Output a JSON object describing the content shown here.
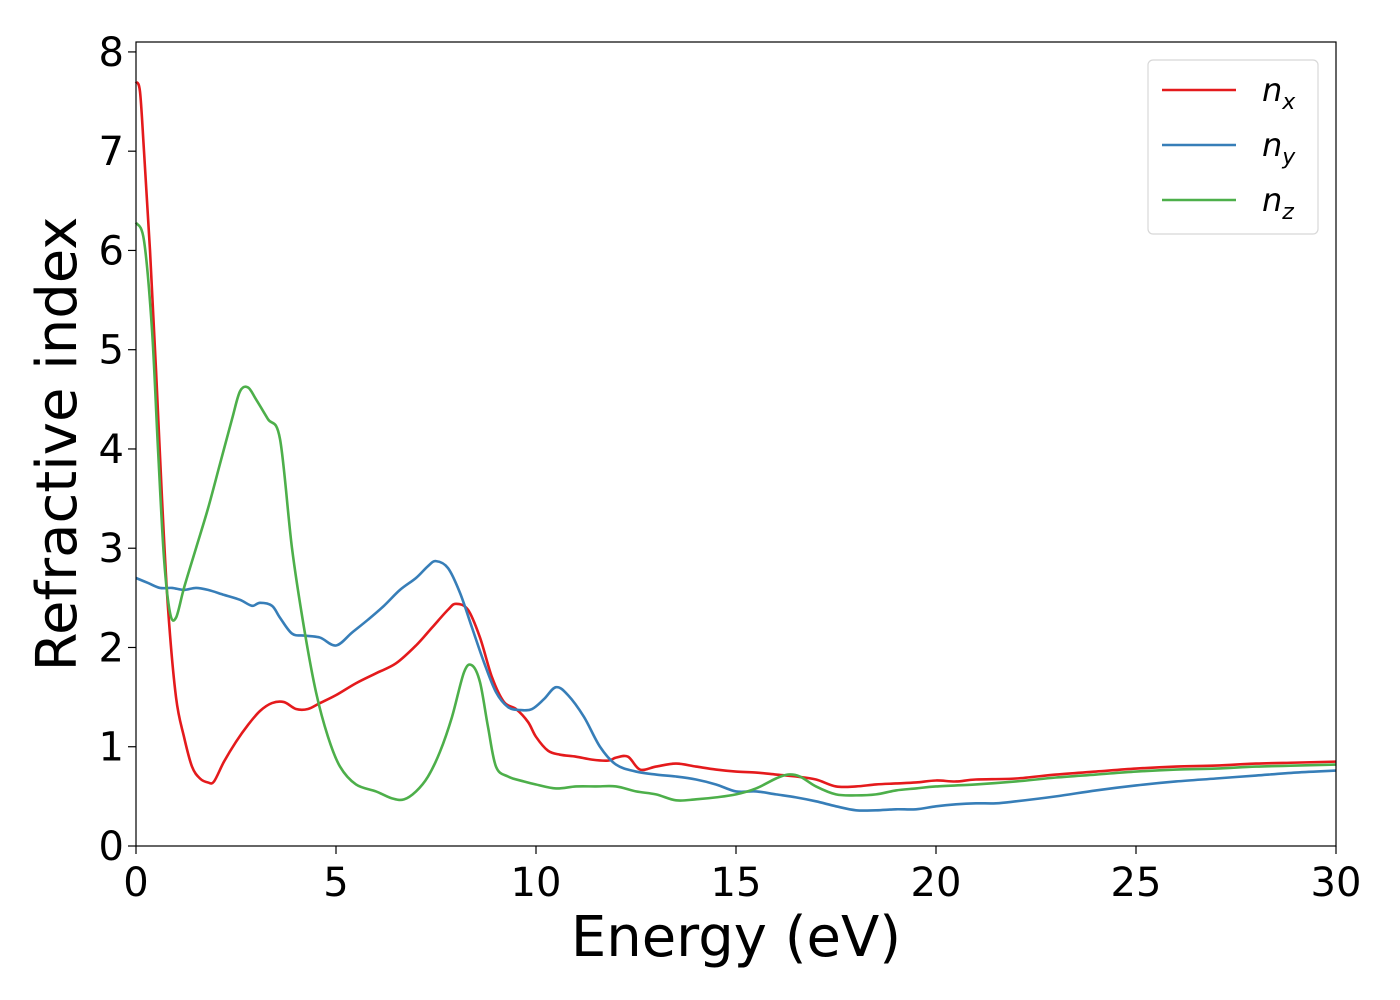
{
  "chart_data": {
    "type": "line",
    "title": "",
    "xlabel": "Energy (eV)",
    "ylabel": "Refractive index",
    "xlim": [
      0,
      30
    ],
    "ylim": [
      0,
      8.1
    ],
    "xticks": [
      "0",
      "5",
      "10",
      "15",
      "20",
      "25",
      "30"
    ],
    "yticks": [
      "0",
      "1",
      "2",
      "3",
      "4",
      "5",
      "6",
      "7",
      "8"
    ],
    "grid": false,
    "legend": {
      "position": "top-right"
    },
    "series": [
      {
        "name_base": "n",
        "name_sub": "x",
        "color": "#e41a1c",
        "x": [
          0,
          0.1,
          0.2,
          0.35,
          0.5,
          0.65,
          0.8,
          1.0,
          1.2,
          1.4,
          1.6,
          1.8,
          1.95,
          2.2,
          2.5,
          2.8,
          3.1,
          3.4,
          3.7,
          4.0,
          4.3,
          4.6,
          5.0,
          5.5,
          6.0,
          6.5,
          7.0,
          7.4,
          7.8,
          8.0,
          8.3,
          8.6,
          8.9,
          9.2,
          9.5,
          9.8,
          10.0,
          10.3,
          10.6,
          11.0,
          11.4,
          11.8,
          12.0,
          12.3,
          12.6,
          13.0,
          13.5,
          14.0,
          14.5,
          15.0,
          15.5,
          16.0,
          16.5,
          17.0,
          17.5,
          18.0,
          18.5,
          19.0,
          19.5,
          20.0,
          20.5,
          21.0,
          22.0,
          23.0,
          24.0,
          25.0,
          26.0,
          27.0,
          28.0,
          29.0,
          30.0
        ],
        "y": [
          7.7,
          7.6,
          7.0,
          6.0,
          4.8,
          3.5,
          2.4,
          1.5,
          1.1,
          0.8,
          0.68,
          0.64,
          0.65,
          0.85,
          1.05,
          1.22,
          1.36,
          1.44,
          1.45,
          1.38,
          1.38,
          1.44,
          1.52,
          1.64,
          1.74,
          1.84,
          2.02,
          2.2,
          2.38,
          2.44,
          2.38,
          2.1,
          1.7,
          1.45,
          1.38,
          1.25,
          1.1,
          0.96,
          0.92,
          0.9,
          0.87,
          0.86,
          0.89,
          0.9,
          0.77,
          0.8,
          0.83,
          0.8,
          0.77,
          0.75,
          0.74,
          0.72,
          0.7,
          0.67,
          0.6,
          0.6,
          0.62,
          0.63,
          0.64,
          0.66,
          0.65,
          0.67,
          0.68,
          0.72,
          0.75,
          0.78,
          0.8,
          0.81,
          0.83,
          0.84,
          0.85
        ]
      },
      {
        "name_base": "n",
        "name_sub": "y",
        "color": "#377eb8",
        "x": [
          0,
          0.3,
          0.6,
          0.9,
          1.2,
          1.5,
          1.8,
          2.2,
          2.6,
          2.9,
          3.1,
          3.4,
          3.6,
          3.9,
          4.2,
          4.6,
          5.0,
          5.4,
          5.8,
          6.2,
          6.6,
          7.0,
          7.3,
          7.5,
          7.8,
          8.1,
          8.4,
          8.7,
          9.0,
          9.3,
          9.6,
          9.9,
          10.2,
          10.5,
          10.8,
          11.2,
          11.6,
          12.0,
          12.5,
          13.0,
          13.5,
          14.0,
          14.5,
          15.0,
          15.5,
          16.0,
          16.5,
          17.0,
          17.5,
          18.0,
          18.5,
          19.0,
          19.5,
          20.0,
          20.5,
          21.0,
          21.5,
          22.0,
          23.0,
          24.0,
          25.0,
          26.0,
          27.0,
          28.0,
          29.0,
          30.0
        ],
        "y": [
          2.7,
          2.65,
          2.6,
          2.6,
          2.58,
          2.6,
          2.58,
          2.53,
          2.48,
          2.42,
          2.45,
          2.42,
          2.3,
          2.14,
          2.12,
          2.1,
          2.02,
          2.15,
          2.28,
          2.42,
          2.58,
          2.7,
          2.82,
          2.87,
          2.8,
          2.55,
          2.2,
          1.85,
          1.55,
          1.4,
          1.37,
          1.38,
          1.48,
          1.6,
          1.52,
          1.3,
          1.0,
          0.82,
          0.75,
          0.72,
          0.7,
          0.67,
          0.62,
          0.55,
          0.55,
          0.52,
          0.49,
          0.45,
          0.4,
          0.36,
          0.36,
          0.37,
          0.37,
          0.4,
          0.42,
          0.43,
          0.43,
          0.45,
          0.5,
          0.56,
          0.61,
          0.65,
          0.68,
          0.71,
          0.74,
          0.76
        ]
      },
      {
        "name_base": "n",
        "name_sub": "z",
        "color": "#4daf4a",
        "x": [
          0,
          0.2,
          0.4,
          0.55,
          0.7,
          0.85,
          1.0,
          1.2,
          1.5,
          1.8,
          2.1,
          2.4,
          2.6,
          2.8,
          3.0,
          3.3,
          3.6,
          3.9,
          4.2,
          4.5,
          4.8,
          5.1,
          5.5,
          6.0,
          6.4,
          6.7,
          7.0,
          7.3,
          7.6,
          7.9,
          8.2,
          8.4,
          8.6,
          8.8,
          9.0,
          9.3,
          9.7,
          10.0,
          10.5,
          11.0,
          11.5,
          12.0,
          12.5,
          13.0,
          13.5,
          14.0,
          14.5,
          15.0,
          15.5,
          16.0,
          16.3,
          16.6,
          17.0,
          17.5,
          18.0,
          18.5,
          19.0,
          19.5,
          20.0,
          21.0,
          22.0,
          23.0,
          24.0,
          25.0,
          26.0,
          27.0,
          28.0,
          29.0,
          30.0
        ],
        "y": [
          6.28,
          6.1,
          5.2,
          4.0,
          2.9,
          2.35,
          2.3,
          2.6,
          3.0,
          3.4,
          3.85,
          4.3,
          4.58,
          4.62,
          4.5,
          4.3,
          4.1,
          3.0,
          2.2,
          1.55,
          1.1,
          0.8,
          0.62,
          0.55,
          0.48,
          0.47,
          0.55,
          0.7,
          0.95,
          1.3,
          1.75,
          1.82,
          1.65,
          1.2,
          0.8,
          0.7,
          0.65,
          0.62,
          0.58,
          0.6,
          0.6,
          0.6,
          0.55,
          0.52,
          0.46,
          0.47,
          0.49,
          0.52,
          0.58,
          0.68,
          0.72,
          0.7,
          0.6,
          0.52,
          0.51,
          0.52,
          0.56,
          0.58,
          0.6,
          0.62,
          0.65,
          0.69,
          0.72,
          0.75,
          0.77,
          0.78,
          0.8,
          0.81,
          0.82
        ]
      }
    ]
  }
}
